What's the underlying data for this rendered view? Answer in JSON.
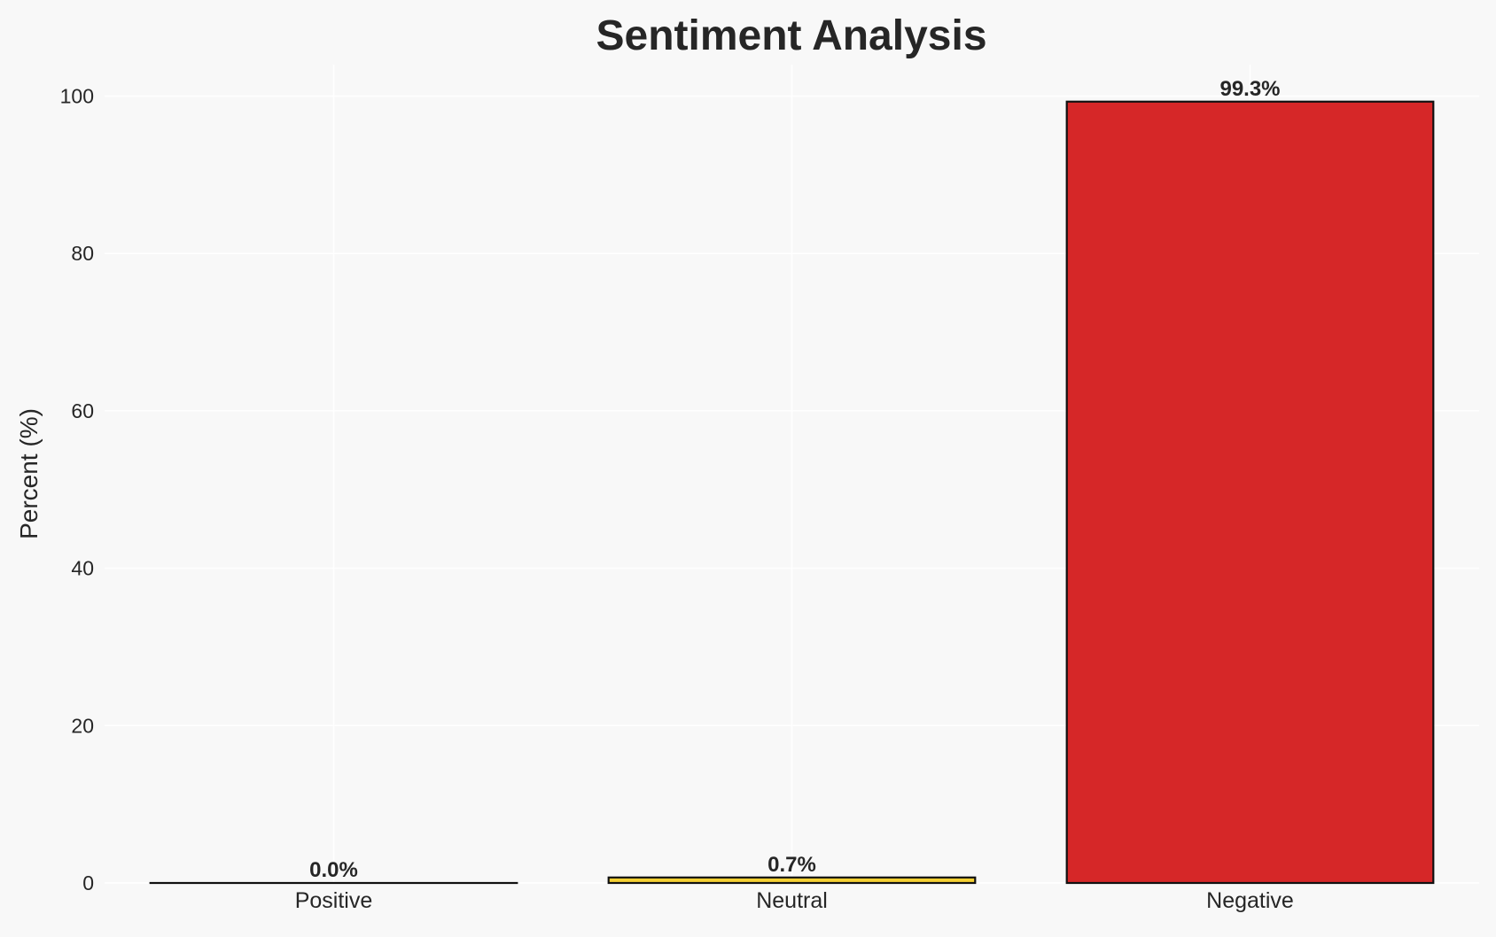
{
  "chart_data": {
    "type": "bar",
    "title": "Sentiment Analysis",
    "xlabel": "",
    "ylabel": "Percent (%)",
    "categories": [
      "Positive",
      "Neutral",
      "Negative"
    ],
    "values": [
      0.0,
      0.7,
      99.3
    ],
    "data_labels": [
      "0.0%",
      "0.7%",
      "99.3%"
    ],
    "colors": [
      "#2ca02c",
      "#f5d033",
      "#d62728"
    ],
    "edge_color": "#111111",
    "ylim": [
      0,
      104
    ],
    "yticks": [
      0,
      20,
      40,
      60,
      80,
      100
    ],
    "grid": true,
    "background": "#f8f8f8"
  }
}
